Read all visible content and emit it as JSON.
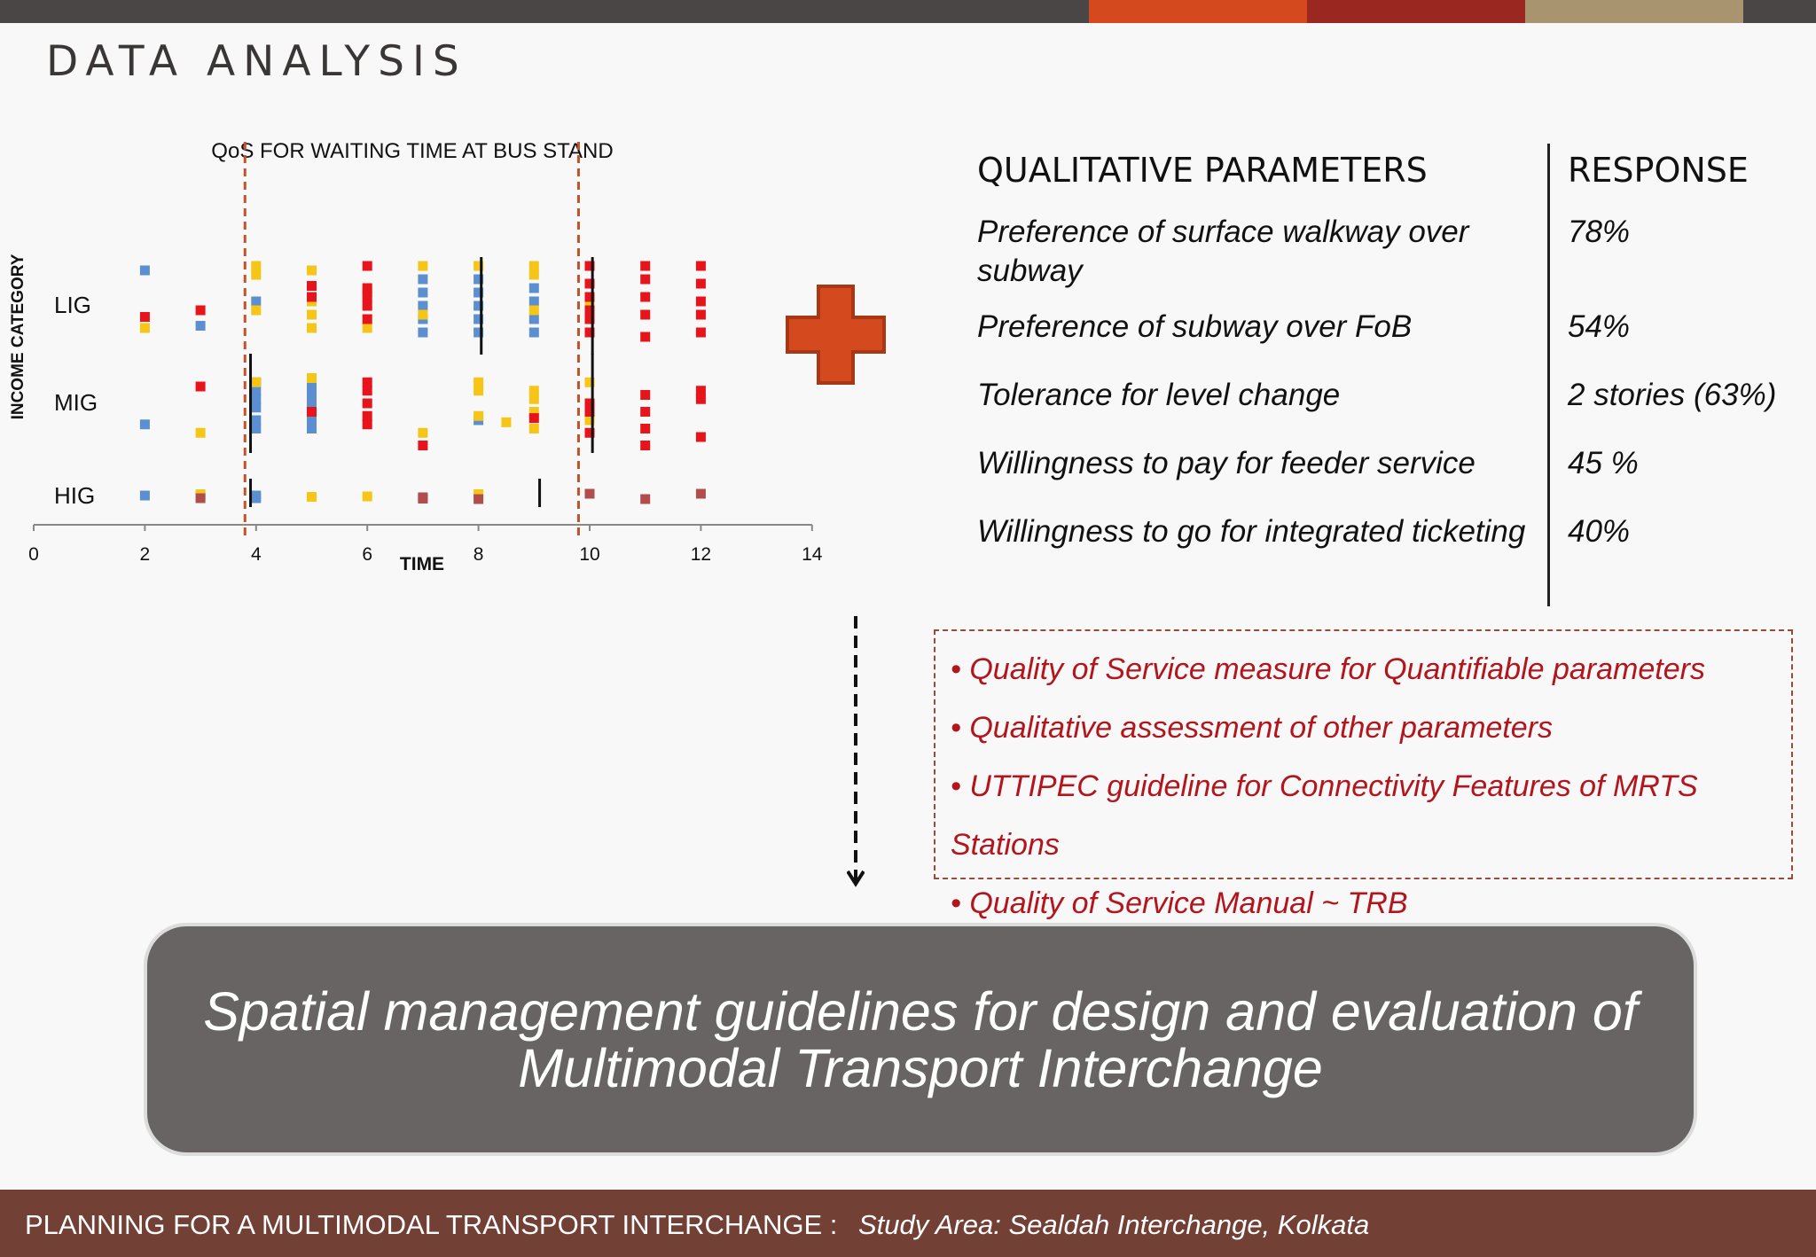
{
  "slide": {
    "title": "DATA ANALYSIS",
    "top_bar_colors": [
      "#4b4646",
      "#d4491d",
      "#9a2820",
      "#a8946e",
      "#4b4646"
    ]
  },
  "chart_data": {
    "type": "scatter",
    "title": "QoS FOR WAITING TIME AT BUS STAND",
    "xlabel": "TIME",
    "ylabel": "INCOME CATEGORY",
    "xlim": [
      0,
      14
    ],
    "x_ticks": [
      0,
      2,
      4,
      6,
      8,
      10,
      12,
      14
    ],
    "categories": [
      "LIG",
      "MIG",
      "HIG"
    ],
    "series": [
      {
        "name": "blue",
        "color": "#5b8fcf",
        "points": [
          [
            2,
            "LIG",
            0.8
          ],
          [
            3,
            "LIG",
            -0.45
          ],
          [
            4,
            "LIG",
            0.1
          ],
          [
            7,
            "LIG",
            0.6
          ],
          [
            7,
            "LIG",
            0.3
          ],
          [
            7,
            "LIG",
            0
          ],
          [
            7,
            "LIG",
            -0.3
          ],
          [
            7,
            "LIG",
            -0.6
          ],
          [
            8,
            "LIG",
            0.6
          ],
          [
            8,
            "LIG",
            0.3
          ],
          [
            8,
            "LIG",
            0
          ],
          [
            8,
            "LIG",
            -0.3
          ],
          [
            8,
            "LIG",
            -0.6
          ],
          [
            9,
            "LIG",
            0.4
          ],
          [
            9,
            "LIG",
            0.1
          ],
          [
            9,
            "LIG",
            -0.3
          ],
          [
            9,
            "LIG",
            -0.6
          ],
          [
            2,
            "MIG",
            -0.5
          ],
          [
            4,
            "MIG",
            0.5
          ],
          [
            4,
            "MIG",
            0.3
          ],
          [
            4,
            "MIG",
            0.1
          ],
          [
            4,
            "MIG",
            -0.1
          ],
          [
            4,
            "MIG",
            -0.4
          ],
          [
            4,
            "MIG",
            -0.6
          ],
          [
            5,
            "MIG",
            0.5
          ],
          [
            5,
            "MIG",
            0.3
          ],
          [
            5,
            "MIG",
            0.1
          ],
          [
            5,
            "MIG",
            -0.1
          ],
          [
            5,
            "MIG",
            -0.4
          ],
          [
            5,
            "MIG",
            -0.6
          ],
          [
            8,
            "MIG",
            -0.4
          ],
          [
            2,
            "HIG",
            0.1
          ],
          [
            3,
            "HIG",
            0
          ],
          [
            4,
            "HIG",
            0.1
          ],
          [
            4,
            "HIG",
            -0.2
          ]
        ]
      },
      {
        "name": "yellow",
        "color": "#f5c518",
        "points": [
          [
            2,
            "LIG",
            -0.5
          ],
          [
            4,
            "LIG",
            0.9
          ],
          [
            4,
            "LIG",
            0.7
          ],
          [
            4,
            "LIG",
            -0.1
          ],
          [
            5,
            "LIG",
            0.8
          ],
          [
            5,
            "LIG",
            0.1
          ],
          [
            5,
            "LIG",
            -0.2
          ],
          [
            5,
            "LIG",
            -0.5
          ],
          [
            6,
            "LIG",
            0.3
          ],
          [
            6,
            "LIG",
            -0.5
          ],
          [
            7,
            "LIG",
            0.9
          ],
          [
            7,
            "LIG",
            -0.2
          ],
          [
            8,
            "LIG",
            0.9
          ],
          [
            9,
            "LIG",
            0.9
          ],
          [
            9,
            "LIG",
            0.7
          ],
          [
            9,
            "LIG",
            -0.1
          ],
          [
            10,
            "LIG",
            0
          ],
          [
            3,
            "MIG",
            -0.7
          ],
          [
            4,
            "MIG",
            0.5
          ],
          [
            5,
            "MIG",
            0.6
          ],
          [
            7,
            "MIG",
            -0.7
          ],
          [
            8,
            "MIG",
            0.5
          ],
          [
            8,
            "MIG",
            0.3
          ],
          [
            8,
            "MIG",
            -0.3
          ],
          [
            8.5,
            "MIG",
            -0.45
          ],
          [
            9,
            "MIG",
            0.3
          ],
          [
            9,
            "MIG",
            0.1
          ],
          [
            9,
            "MIG",
            -0.2
          ],
          [
            9,
            "MIG",
            -0.6
          ],
          [
            10,
            "MIG",
            0.5
          ],
          [
            10,
            "MIG",
            -0.4
          ],
          [
            3,
            "HIG",
            0.25
          ],
          [
            5,
            "HIG",
            -0.05
          ],
          [
            6,
            "HIG",
            0
          ],
          [
            8,
            "HIG",
            0.25
          ]
        ]
      },
      {
        "name": "red",
        "color": "#e8141b",
        "points": [
          [
            2,
            "LIG",
            -0.25
          ],
          [
            3,
            "LIG",
            -0.1
          ],
          [
            5,
            "LIG",
            0.45
          ],
          [
            5,
            "LIG",
            0.2
          ],
          [
            6,
            "LIG",
            0.9
          ],
          [
            6,
            "LIG",
            0.4
          ],
          [
            6,
            "LIG",
            0.2
          ],
          [
            6,
            "LIG",
            0
          ],
          [
            6,
            "LIG",
            -0.3
          ],
          [
            10,
            "LIG",
            0.9
          ],
          [
            10,
            "LIG",
            0.5
          ],
          [
            10,
            "LIG",
            0.2
          ],
          [
            10,
            "LIG",
            -0.1
          ],
          [
            10,
            "LIG",
            -0.3
          ],
          [
            10,
            "LIG",
            -0.6
          ],
          [
            11,
            "LIG",
            0.9
          ],
          [
            11,
            "LIG",
            0.6
          ],
          [
            11,
            "LIG",
            0.2
          ],
          [
            11,
            "LIG",
            -0.2
          ],
          [
            11,
            "LIG",
            -0.7
          ],
          [
            12,
            "LIG",
            0.9
          ],
          [
            12,
            "LIG",
            0.5
          ],
          [
            12,
            "LIG",
            0.1
          ],
          [
            12,
            "LIG",
            -0.2
          ],
          [
            12,
            "LIG",
            -0.6
          ],
          [
            3,
            "MIG",
            0.4
          ],
          [
            5,
            "MIG",
            -0.2
          ],
          [
            6,
            "MIG",
            0.5
          ],
          [
            6,
            "MIG",
            0.3
          ],
          [
            6,
            "MIG",
            0
          ],
          [
            6,
            "MIG",
            -0.3
          ],
          [
            6,
            "MIG",
            -0.5
          ],
          [
            7,
            "MIG",
            -1
          ],
          [
            9,
            "MIG",
            -0.35
          ],
          [
            10,
            "MIG",
            0
          ],
          [
            10,
            "MIG",
            -0.2
          ],
          [
            10,
            "MIG",
            -0.7
          ],
          [
            11,
            "MIG",
            0.2
          ],
          [
            11,
            "MIG",
            -0.2
          ],
          [
            11,
            "MIG",
            -0.6
          ],
          [
            11,
            "MIG",
            -1
          ],
          [
            12,
            "MIG",
            0.3
          ],
          [
            12,
            "MIG",
            0.1
          ],
          [
            12,
            "MIG",
            -0.8
          ]
        ]
      },
      {
        "name": "brown",
        "color": "#b04e4e",
        "points": [
          [
            3,
            "HIG",
            -0.2
          ],
          [
            7,
            "HIG",
            -0.1
          ],
          [
            7,
            "HIG",
            -0.25
          ],
          [
            8,
            "HIG",
            -0.3
          ],
          [
            10,
            "HIG",
            0.3
          ],
          [
            11,
            "HIG",
            -0.3
          ],
          [
            12,
            "HIG",
            0.3
          ]
        ]
      }
    ],
    "reference_lines": [
      {
        "x": 3.8,
        "style": "dashed",
        "color": "#c0532a"
      },
      {
        "x": 9.8,
        "style": "dashed",
        "color": "#c0532a"
      }
    ],
    "range_markers": [
      {
        "x": 8.05,
        "category": "LIG"
      },
      {
        "x": 10.05,
        "category": "LIG"
      },
      {
        "x": 3.9,
        "category": "MIG"
      },
      {
        "x": 10.05,
        "category": "MIG"
      },
      {
        "x": 3.9,
        "category": "HIG"
      },
      {
        "x": 9.1,
        "category": "HIG"
      }
    ]
  },
  "plus_sign": {
    "color": "#d4491d",
    "stroke": "#a83716"
  },
  "qualitative": {
    "header_param": "QUALITATIVE PARAMETERS",
    "header_response": "RESPONSE",
    "rows": [
      {
        "param": "Preference of surface walkway over subway",
        "response": "78%"
      },
      {
        "param": "Preference of subway over FoB",
        "response": "54%"
      },
      {
        "param": "Tolerance for level change",
        "response": "2 stories (63%)"
      },
      {
        "param": "Willingness to pay for feeder service",
        "response": "45 %"
      },
      {
        "param": "Willingness to go for integrated ticketing",
        "response": "40%"
      }
    ]
  },
  "bullets": [
    "• Quality of Service measure for Quantifiable parameters",
    "• Qualitative assessment of other parameters",
    "• UTTIPEC guideline for Connectivity Features of MRTS",
    "Stations",
    "• Quality of Service Manual  ~ TRB"
  ],
  "banner": {
    "line1": "Spatial management guidelines for design and evaluation of",
    "line2": "Multimodal Transport Interchange"
  },
  "footer": {
    "main": "PLANNING FOR A MULTIMODAL TRANSPORT INTERCHANGE : ",
    "study_area": "Study Area: Sealdah Interchange, Kolkata"
  }
}
